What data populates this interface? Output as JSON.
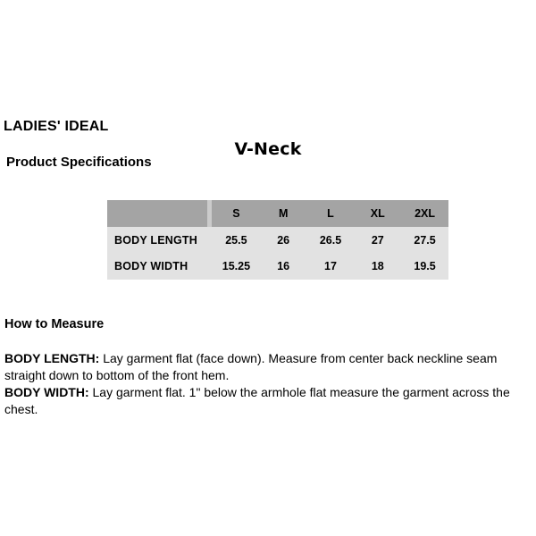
{
  "header": {
    "brand": "LADIES' IDEAL",
    "style_name": "V-Neck",
    "section_title": "Product Specifications"
  },
  "spec_table": {
    "type": "table",
    "columns": [
      "",
      "S",
      "M",
      "L",
      "XL",
      "2XL"
    ],
    "rows": [
      {
        "label": "BODY LENGTH",
        "values": [
          "25.5",
          "26",
          "26.5",
          "27",
          "27.5"
        ]
      },
      {
        "label": "BODY WIDTH",
        "values": [
          "15.25",
          "16",
          "17",
          "18",
          "19.5"
        ]
      }
    ],
    "colors": {
      "header_bg": "#a4a4a4",
      "row_bg": "#e2e2e2",
      "separator": "#cbcbcb"
    }
  },
  "how_to_measure": {
    "title": "How to Measure",
    "items": [
      {
        "term": "BODY LENGTH:",
        "description": " Lay garment flat (face down). Measure from center back neckline seam straight down to bottom of the front hem."
      },
      {
        "term": "BODY WIDTH:",
        "description": " Lay garment flat. 1\" below the armhole flat measure the garment across the chest."
      }
    ]
  }
}
